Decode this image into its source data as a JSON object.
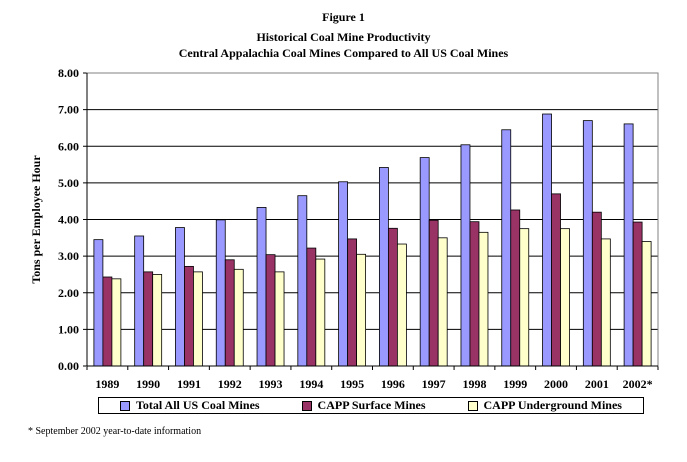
{
  "header": {
    "figure_label": "Figure 1",
    "title": "Historical Coal Mine Productivity",
    "subtitle": "Central Appalachia Coal Mines Compared to All US Coal Mines"
  },
  "footnote": "* September 2002 year-to-date information",
  "chart_data": {
    "type": "bar",
    "title": "Historical Coal Mine Productivity",
    "subtitle": "Central Appalachia Coal Mines Compared to All US Coal Mines",
    "xlabel": "",
    "ylabel": "Tons per Employee Hour",
    "ylim": [
      0,
      8
    ],
    "yticks": [
      "0.00",
      "1.00",
      "2.00",
      "3.00",
      "4.00",
      "5.00",
      "6.00",
      "7.00",
      "8.00"
    ],
    "grid": "horizontal",
    "legend_position": "bottom",
    "categories": [
      "1989",
      "1990",
      "1991",
      "1992",
      "1993",
      "1994",
      "1995",
      "1996",
      "1997",
      "1998",
      "1999",
      "2000",
      "2001",
      "2002*"
    ],
    "series": [
      {
        "name": "Total All US Coal Mines",
        "color": "#9999ff",
        "values": [
          3.45,
          3.55,
          3.78,
          3.99,
          4.33,
          4.65,
          5.03,
          5.42,
          5.69,
          6.04,
          6.45,
          6.88,
          6.7,
          6.61
        ]
      },
      {
        "name": "CAPP Surface Mines",
        "color": "#993366",
        "values": [
          2.43,
          2.57,
          2.72,
          2.9,
          3.04,
          3.22,
          3.47,
          3.76,
          3.98,
          3.94,
          4.26,
          4.7,
          4.2,
          3.93
        ]
      },
      {
        "name": "CAPP Underground Mines",
        "color": "#ffffcc",
        "values": [
          2.38,
          2.5,
          2.57,
          2.64,
          2.57,
          2.92,
          3.05,
          3.33,
          3.5,
          3.65,
          3.75,
          3.75,
          3.47,
          3.4
        ]
      }
    ]
  }
}
